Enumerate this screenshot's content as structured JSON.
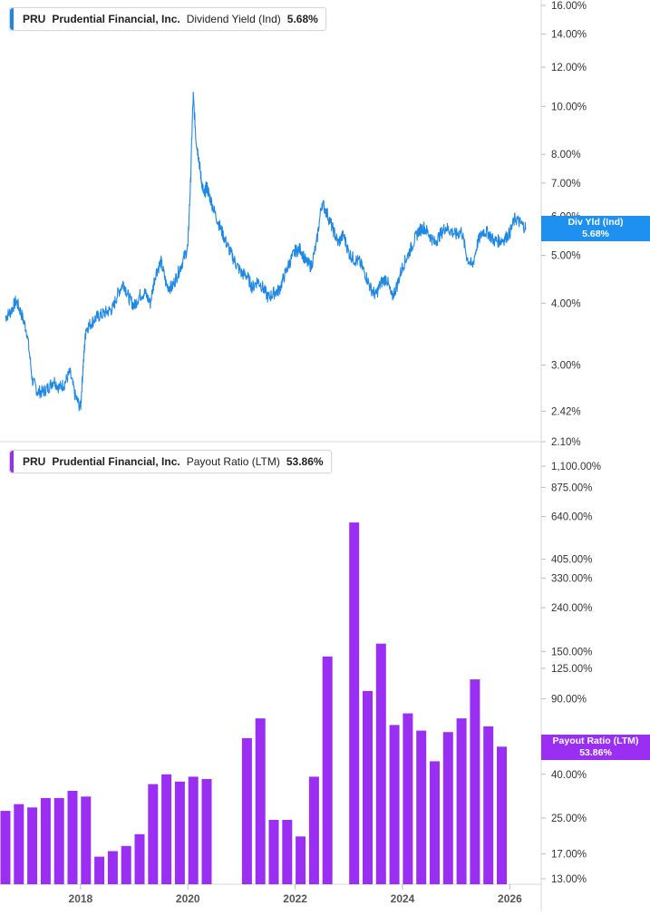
{
  "chart_data": [
    {
      "type": "line",
      "legend": {
        "ticker": "PRU",
        "company": "Prudential Financial, Inc.",
        "metric": "Dividend Yield (Ind)",
        "value": "5.68%"
      },
      "scale": "log",
      "ylim": [
        2.1,
        16.0
      ],
      "y_ticks": [
        "16.00%",
        "14.00%",
        "12.00%",
        "10.00%",
        "8.00%",
        "7.00%",
        "6.00%",
        "5.00%",
        "4.00%",
        "3.00%",
        "2.42%",
        "2.10%"
      ],
      "y_tick_values": [
        16.0,
        14.0,
        12.0,
        10.0,
        8.0,
        7.0,
        6.0,
        5.0,
        4.0,
        3.0,
        2.42,
        2.1
      ],
      "last_value_label": {
        "line1": "Div Yld (Ind)",
        "line2": "5.68%"
      },
      "color": "#1e88e5",
      "series": [
        {
          "x": [
            2016.6,
            2016.7,
            2016.8,
            2016.9,
            2017.0,
            2017.1,
            2017.2,
            2017.3,
            2017.4,
            2017.5,
            2017.6,
            2017.7,
            2017.8,
            2017.9,
            2018.0,
            2018.05,
            2018.1,
            2018.2,
            2018.3,
            2018.4,
            2018.5,
            2018.6,
            2018.7,
            2018.8,
            2018.9,
            2019.0,
            2019.1,
            2019.2,
            2019.3,
            2019.4,
            2019.5,
            2019.6,
            2019.7,
            2019.8,
            2019.9,
            2020.0,
            2020.05,
            2020.1,
            2020.15,
            2020.2,
            2020.25,
            2020.3,
            2020.35,
            2020.4,
            2020.5,
            2020.6,
            2020.7,
            2020.8,
            2020.9,
            2021.0,
            2021.1,
            2021.2,
            2021.3,
            2021.4,
            2021.5,
            2021.6,
            2021.7,
            2021.8,
            2021.9,
            2022.0,
            2022.1,
            2022.2,
            2022.3,
            2022.4,
            2022.5,
            2022.6,
            2022.7,
            2022.8,
            2022.9,
            2023.0,
            2023.1,
            2023.2,
            2023.3,
            2023.4,
            2023.5,
            2023.6,
            2023.7,
            2023.8,
            2023.9,
            2024.0,
            2024.1,
            2024.2,
            2024.3,
            2024.4,
            2024.5,
            2024.6,
            2024.7,
            2024.8,
            2024.9,
            2025.0,
            2025.1,
            2025.2,
            2025.3,
            2025.4,
            2025.5,
            2025.6,
            2025.7,
            2025.8,
            2025.9,
            2026.0,
            2026.1,
            2026.2,
            2026.3
          ],
          "y": [
            3.75,
            3.85,
            4.05,
            3.8,
            3.5,
            2.8,
            2.65,
            2.65,
            2.7,
            2.8,
            2.7,
            2.75,
            2.9,
            2.6,
            2.45,
            3.0,
            3.55,
            3.65,
            3.75,
            3.8,
            3.85,
            3.9,
            4.2,
            4.4,
            4.1,
            3.95,
            4.15,
            4.2,
            4.0,
            4.6,
            4.85,
            4.35,
            4.3,
            4.55,
            4.85,
            5.2,
            7.0,
            10.5,
            8.6,
            7.9,
            7.1,
            6.6,
            6.9,
            6.6,
            6.1,
            5.7,
            5.35,
            5.05,
            4.8,
            4.6,
            4.55,
            4.3,
            4.45,
            4.3,
            4.1,
            4.2,
            4.25,
            4.55,
            4.85,
            5.1,
            5.15,
            4.85,
            4.75,
            5.3,
            6.4,
            6.05,
            5.65,
            5.3,
            5.5,
            5.05,
            4.9,
            4.85,
            4.6,
            4.3,
            4.15,
            4.4,
            4.5,
            4.1,
            4.35,
            4.75,
            5.0,
            5.3,
            5.6,
            5.7,
            5.5,
            5.3,
            5.5,
            5.7,
            5.6,
            5.5,
            5.6,
            4.95,
            4.75,
            5.3,
            5.6,
            5.55,
            5.35,
            5.35,
            5.4,
            5.55,
            5.95,
            5.8,
            5.68
          ]
        }
      ]
    },
    {
      "type": "bar",
      "legend": {
        "ticker": "PRU",
        "company": "Prudential Financial, Inc.",
        "metric": "Payout Ratio (LTM)",
        "value": "53.86%"
      },
      "scale": "log",
      "ylim": [
        13.0,
        1100.0
      ],
      "y_ticks": [
        "1,100.00%",
        "875.00%",
        "640.00%",
        "405.00%",
        "330.00%",
        "240.00%",
        "150.00%",
        "125.00%",
        "90.00%",
        "40.00%",
        "25.00%",
        "17.00%",
        "13.00%"
      ],
      "y_tick_values": [
        1100,
        875,
        640,
        405,
        330,
        240,
        150,
        125,
        90,
        40,
        25,
        17,
        13
      ],
      "last_value_label": {
        "line1": "Payout Ratio (LTM)",
        "line2": "53.86%"
      },
      "color": "#9a2ff3",
      "x_ticks": [
        "2018",
        "2020",
        "2022",
        "2024",
        "2026"
      ],
      "x_tick_values": [
        2018,
        2020,
        2022,
        2024,
        2026
      ],
      "bars": {
        "x": [
          2016.6,
          2016.85,
          2017.1,
          2017.35,
          2017.6,
          2017.85,
          2018.1,
          2018.35,
          2018.6,
          2018.85,
          2019.1,
          2019.35,
          2019.6,
          2019.85,
          2020.1,
          2020.35,
          2021.1,
          2021.35,
          2021.6,
          2021.85,
          2022.1,
          2022.35,
          2022.6,
          2023.1,
          2023.35,
          2023.6,
          2023.85,
          2024.1,
          2024.35,
          2024.6,
          2024.85,
          2025.1,
          2025.35,
          2025.6,
          2025.85
        ],
        "values": [
          27.0,
          29.0,
          28.0,
          31.0,
          31.0,
          33.5,
          31.5,
          16.5,
          17.5,
          18.5,
          21.0,
          36.0,
          40.0,
          37.0,
          39.0,
          38.0,
          59.0,
          73.0,
          24.5,
          24.5,
          20.5,
          39.0,
          142.0,
          600.0,
          98.0,
          163.0,
          68.0,
          77.0,
          64.0,
          46.0,
          63.0,
          73.0,
          111.0,
          67.0,
          53.86
        ]
      }
    }
  ]
}
